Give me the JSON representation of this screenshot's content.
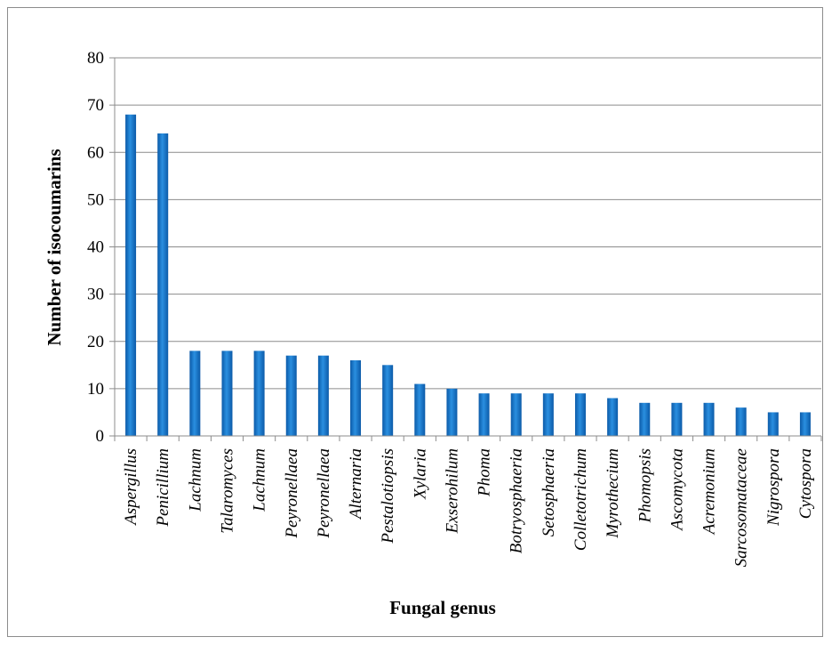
{
  "chart_data": {
    "type": "bar",
    "title": "",
    "xlabel": "Fungal genus",
    "ylabel": "Number of isocoumarins",
    "ylim": [
      0,
      80
    ],
    "yticks": [
      0,
      10,
      20,
      30,
      40,
      50,
      60,
      70,
      80
    ],
    "grid": true,
    "legend": "none",
    "bar_color": "#1a7bd0",
    "categories": [
      "Aspergillus",
      "Penicillium",
      "Lachnum",
      "Talaromyces",
      "Lachnum",
      "Peyronellaea",
      "Peyronellaea",
      "Alternaria",
      "Pestalotiopsis",
      "Xylaria",
      "Exserohilum",
      "Phoma",
      "Botryosphaeria",
      "Setosphaeria",
      "Colletotrichum",
      "Myrothecium",
      "Phomopsis",
      "Ascomycota",
      "Acremonium",
      "Sarcosomataceae",
      "Nigrospora",
      "Cytospora"
    ],
    "values": [
      68,
      64,
      18,
      18,
      18,
      17,
      17,
      16,
      15,
      11,
      10,
      9,
      9,
      9,
      9,
      8,
      7,
      7,
      7,
      6,
      5,
      5
    ]
  }
}
